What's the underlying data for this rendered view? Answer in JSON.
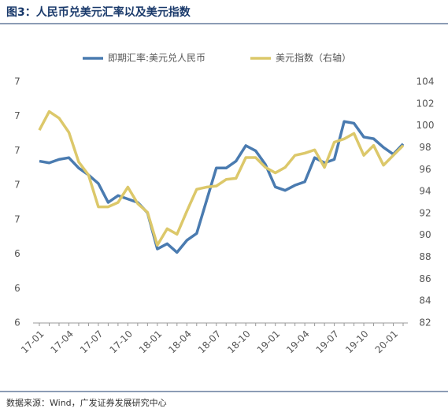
{
  "chart_data": {
    "type": "line",
    "title": "图3：人民币兑美元汇率以及美元指数",
    "source": "数据来源：Wind，广发证券发展研究中心",
    "categories": [
      "17-01",
      null,
      null,
      "17-04",
      null,
      null,
      "17-07",
      null,
      null,
      "17-10",
      null,
      null,
      "18-01",
      null,
      null,
      "18-04",
      null,
      null,
      "18-07",
      null,
      null,
      "18-10",
      null,
      null,
      "19-01",
      null,
      null,
      "19-04",
      null,
      null,
      "19-07",
      null,
      null,
      "19-10",
      null,
      null,
      "20-01",
      null
    ],
    "series": [
      {
        "name": "即期汇率:美元兑人民币",
        "color": "#4a7bb0",
        "axis": "y",
        "values": [
          6.94,
          6.93,
          6.95,
          6.96,
          6.9,
          6.86,
          6.81,
          6.7,
          6.74,
          6.72,
          6.7,
          6.64,
          6.43,
          6.46,
          6.41,
          6.48,
          6.52,
          6.71,
          6.9,
          6.9,
          6.94,
          7.03,
          7.0,
          6.92,
          6.79,
          6.77,
          6.8,
          6.82,
          6.96,
          6.93,
          6.95,
          7.17,
          7.16,
          7.08,
          7.07,
          7.02,
          6.98,
          7.04
        ]
      },
      {
        "name": "美元指数（右轴）",
        "color": "#dcc86a",
        "axis": "y2",
        "values": [
          99.6,
          101.3,
          100.7,
          99.4,
          96.7,
          95.5,
          92.6,
          92.6,
          93.0,
          94.4,
          92.9,
          92.1,
          89.1,
          90.6,
          90.1,
          92.2,
          94.2,
          94.4,
          94.5,
          95.1,
          95.2,
          97.1,
          97.1,
          96.2,
          95.7,
          96.2,
          97.3,
          97.5,
          97.8,
          96.2,
          98.5,
          98.8,
          99.3,
          97.3,
          98.2,
          96.4,
          97.3,
          98.2
        ]
      }
    ],
    "ylim": [
      6.0,
      7.4
    ],
    "yticks": [
      {
        "value": 6.0,
        "label": "6"
      },
      {
        "value": 6.2,
        "label": "6"
      },
      {
        "value": 6.4,
        "label": "6"
      },
      {
        "value": 6.6,
        "label": "7"
      },
      {
        "value": 6.8,
        "label": "7"
      },
      {
        "value": 7.0,
        "label": "7"
      },
      {
        "value": 7.2,
        "label": "7"
      },
      {
        "value": 7.4,
        "label": "7"
      }
    ],
    "y2lim": [
      82,
      104
    ],
    "y2ticks": [
      82,
      84,
      86,
      88,
      90,
      92,
      94,
      96,
      98,
      100,
      102,
      104
    ],
    "legend": "top"
  }
}
